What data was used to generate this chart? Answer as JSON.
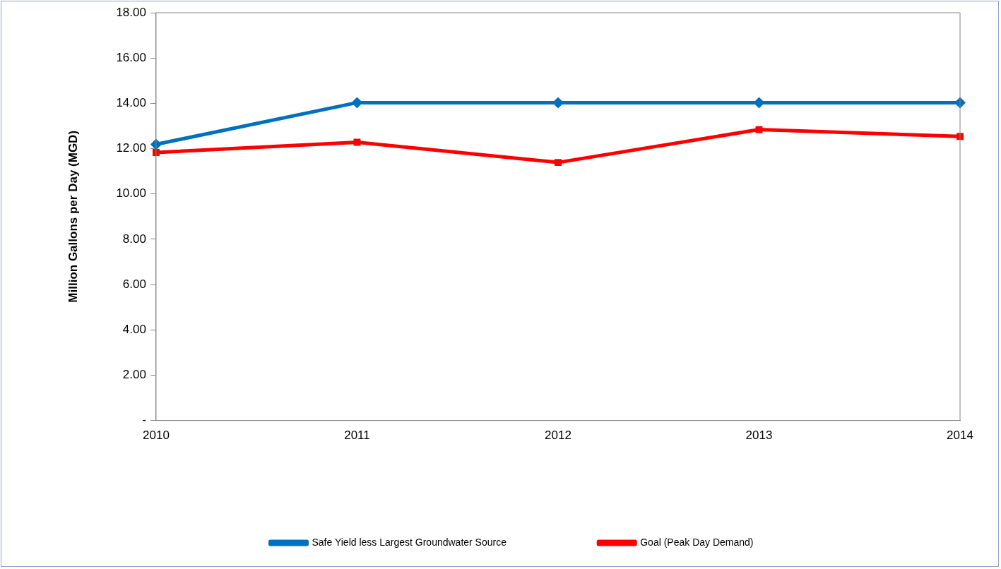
{
  "chart_data": {
    "type": "line",
    "ylabel": "Million Gallons per Day (MGD)",
    "categories": [
      "2010",
      "2011",
      "2012",
      "2013",
      "2014"
    ],
    "series": [
      {
        "name": "Safe Yield less Largest Groundwater Source",
        "color": "#0070c0",
        "values": [
          12.19,
          14.03,
          14.03,
          14.03,
          14.03
        ],
        "marker": "diamond"
      },
      {
        "name": "Goal (Peak Day Demand)",
        "color": "#ff0000",
        "values": [
          11.83,
          12.28,
          11.39,
          12.84,
          12.54
        ],
        "marker": "square"
      }
    ],
    "ylim": [
      0,
      18
    ],
    "yticks": [
      {
        "value": 0,
        "label": "-"
      },
      {
        "value": 2,
        "label": "2.00"
      },
      {
        "value": 4,
        "label": "4.00"
      },
      {
        "value": 6,
        "label": "6.00"
      },
      {
        "value": 8,
        "label": "8.00"
      },
      {
        "value": 10,
        "label": "10.00"
      },
      {
        "value": 12,
        "label": "12.00"
      },
      {
        "value": 14,
        "label": "14.00"
      },
      {
        "value": 16,
        "label": "16.00"
      },
      {
        "value": 18,
        "label": "18.00"
      }
    ],
    "grid": false,
    "legend": "bottom",
    "line_style": "solid"
  }
}
